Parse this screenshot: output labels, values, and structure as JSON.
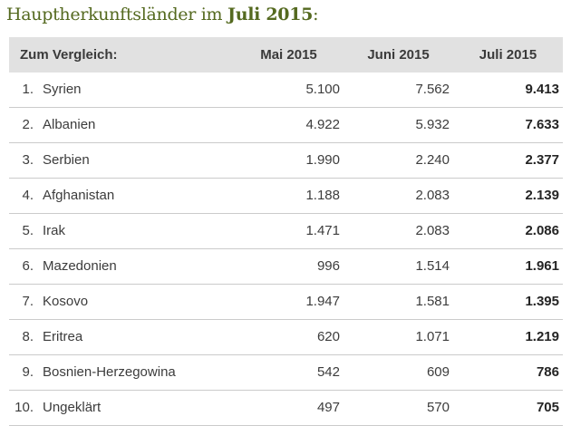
{
  "title": {
    "prefix": "Hauptherkunftsländer im ",
    "highlight": "Juli 2015",
    "suffix": ":"
  },
  "colors": {
    "title_green": "#54691f",
    "header_bg": "#e1e1e1",
    "body_text": "#3c3c3c",
    "row_border": "#cbcbcb",
    "bold_value_text": "#242424"
  },
  "table": {
    "header": {
      "label": "Zum Vergleich:",
      "col_mai": "Mai 2015",
      "col_juni": "Juni 2015",
      "col_juli": "Juli 2015"
    },
    "rows": [
      {
        "rank": "1.",
        "country": "Syrien",
        "mai": "5.100",
        "juni": "7.562",
        "juli": "9.413"
      },
      {
        "rank": "2.",
        "country": "Albanien",
        "mai": "4.922",
        "juni": "5.932",
        "juli": "7.633"
      },
      {
        "rank": "3.",
        "country": "Serbien",
        "mai": "1.990",
        "juni": "2.240",
        "juli": "2.377"
      },
      {
        "rank": "4.",
        "country": "Afghanistan",
        "mai": "1.188",
        "juni": "2.083",
        "juli": "2.139"
      },
      {
        "rank": "5.",
        "country": "Irak",
        "mai": "1.471",
        "juni": "2.083",
        "juli": "2.086"
      },
      {
        "rank": "6.",
        "country": "Mazedonien",
        "mai": "996",
        "juni": "1.514",
        "juli": "1.961"
      },
      {
        "rank": "7.",
        "country": "Kosovo",
        "mai": "1.947",
        "juni": "1.581",
        "juli": "1.395"
      },
      {
        "rank": "8.",
        "country": "Eritrea",
        "mai": "620",
        "juni": "1.071",
        "juli": "1.219"
      },
      {
        "rank": "9.",
        "country": "Bosnien-Herzegowina",
        "mai": "542",
        "juni": "609",
        "juli": "786"
      },
      {
        "rank": "10.",
        "country": "Ungeklärt",
        "mai": "497",
        "juni": "570",
        "juli": "705"
      }
    ]
  },
  "chart_data": {
    "type": "table",
    "title": "Hauptherkunftsländer im Juli 2015",
    "row_header_label": "Zum Vergleich:",
    "categories": [
      "Syrien",
      "Albanien",
      "Serbien",
      "Afghanistan",
      "Irak",
      "Mazedonien",
      "Kosovo",
      "Eritrea",
      "Bosnien-Herzegowina",
      "Ungeklärt"
    ],
    "series": [
      {
        "name": "Mai 2015",
        "values": [
          5100,
          4922,
          1990,
          1188,
          1471,
          996,
          1947,
          620,
          542,
          497
        ]
      },
      {
        "name": "Juni 2015",
        "values": [
          7562,
          5932,
          2240,
          2083,
          2083,
          1514,
          1581,
          1071,
          609,
          570
        ]
      },
      {
        "name": "Juli 2015",
        "values": [
          9413,
          7633,
          2377,
          2139,
          2086,
          1961,
          1395,
          1219,
          786,
          705
        ]
      }
    ],
    "notes": "Juli 2015 column rendered bold; rows ranked 1-10"
  }
}
